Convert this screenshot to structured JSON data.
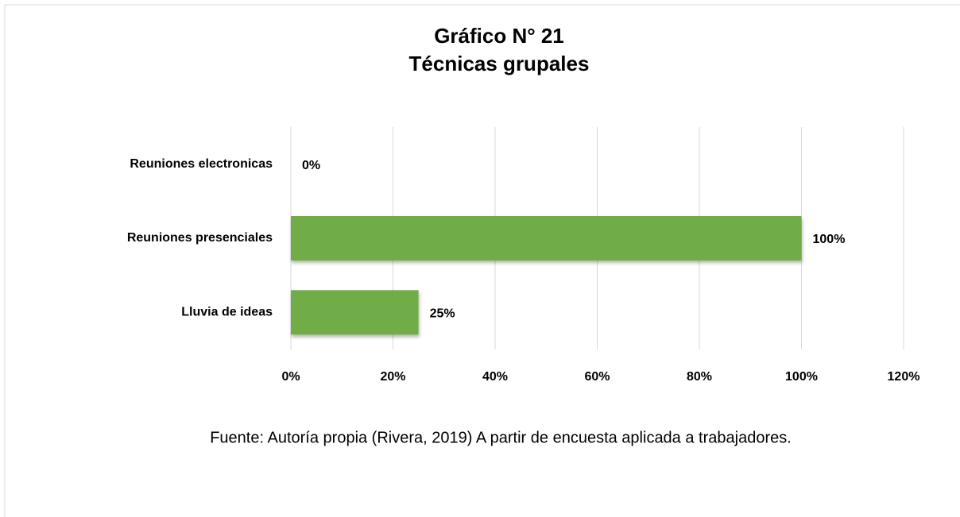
{
  "chart_data": {
    "type": "bar",
    "orientation": "horizontal",
    "title": "Gráfico N° 21",
    "subtitle": "Técnicas grupales",
    "categories": [
      "Reuniones electronicas",
      "Reuniones presenciales",
      "Lluvia de ideas"
    ],
    "values": [
      0,
      100,
      25
    ],
    "value_labels": [
      "0%",
      "100%",
      "25%"
    ],
    "color": "#70ad47",
    "xlim": [
      0,
      120
    ],
    "xticks": [
      {
        "value": 0,
        "label": "0%"
      },
      {
        "value": 20,
        "label": "20%"
      },
      {
        "value": 40,
        "label": "40%"
      },
      {
        "value": 60,
        "label": "60%"
      },
      {
        "value": 80,
        "label": "80%"
      },
      {
        "value": 100,
        "label": "100%"
      },
      {
        "value": 120,
        "label": "120%"
      }
    ],
    "grid": true,
    "source": "Fuente: Autoría propia (Rivera, 2019) A partir de encuesta aplicada a trabajadores."
  }
}
